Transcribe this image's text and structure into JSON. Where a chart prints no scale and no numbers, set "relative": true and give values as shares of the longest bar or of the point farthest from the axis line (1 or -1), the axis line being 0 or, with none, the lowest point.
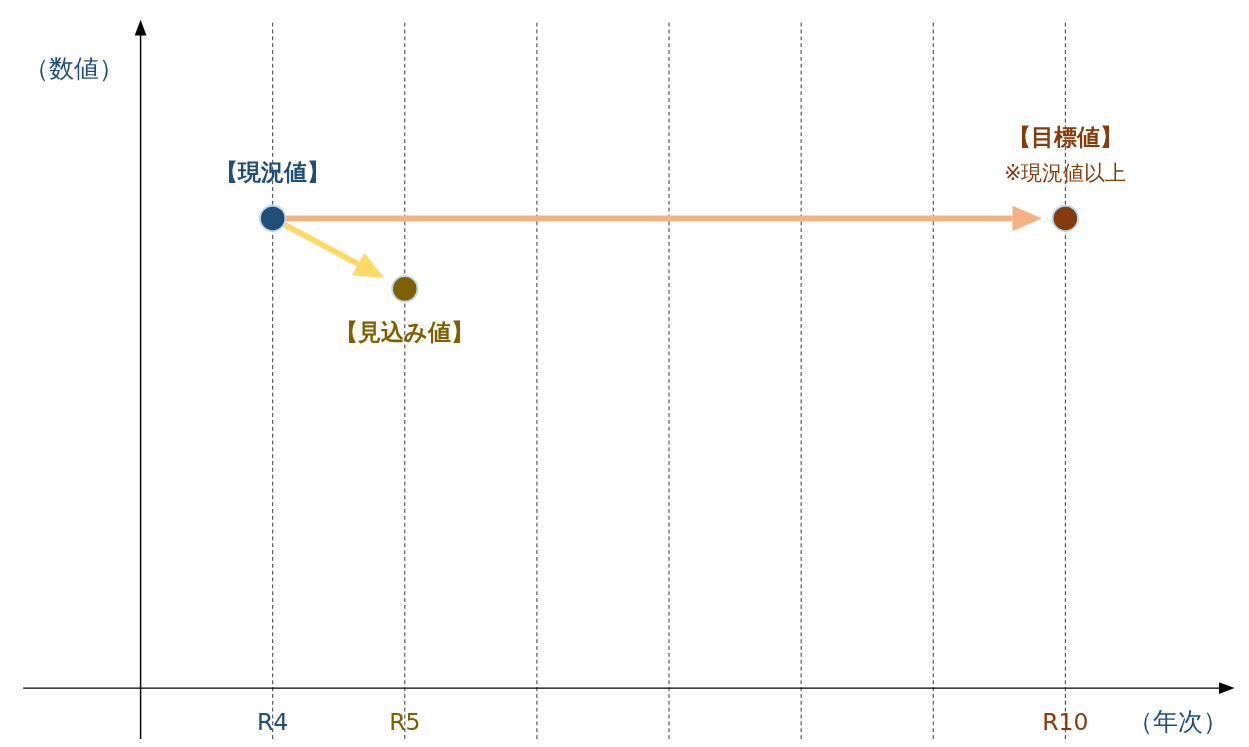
{
  "chart_data": {
    "type": "scatter",
    "relative": true,
    "xlabel": "（年次）",
    "categories": [
      "R4",
      "R5",
      null,
      null,
      null,
      null,
      "R10"
    ],
    "values": [
      1,
      0.85,
      null,
      null,
      null,
      null,
      1
    ],
    "colors": [
      "#1f4e79",
      "#7f6000",
      null,
      null,
      null,
      null,
      "#843c0c"
    ],
    "grid": "x",
    "marker": "circle",
    "annotations": [
      "（数値）",
      {
        "text": "【現況値】",
        "x": "R4",
        "y": 1
      },
      {
        "text": "【見込み値】",
        "x": "R5",
        "y": 0.85
      },
      {
        "text": "【目標値】",
        "x": "R10",
        "y": 1
      },
      {
        "text": "※現況値以上",
        "x": "R10",
        "y": 1
      }
    ]
  }
}
